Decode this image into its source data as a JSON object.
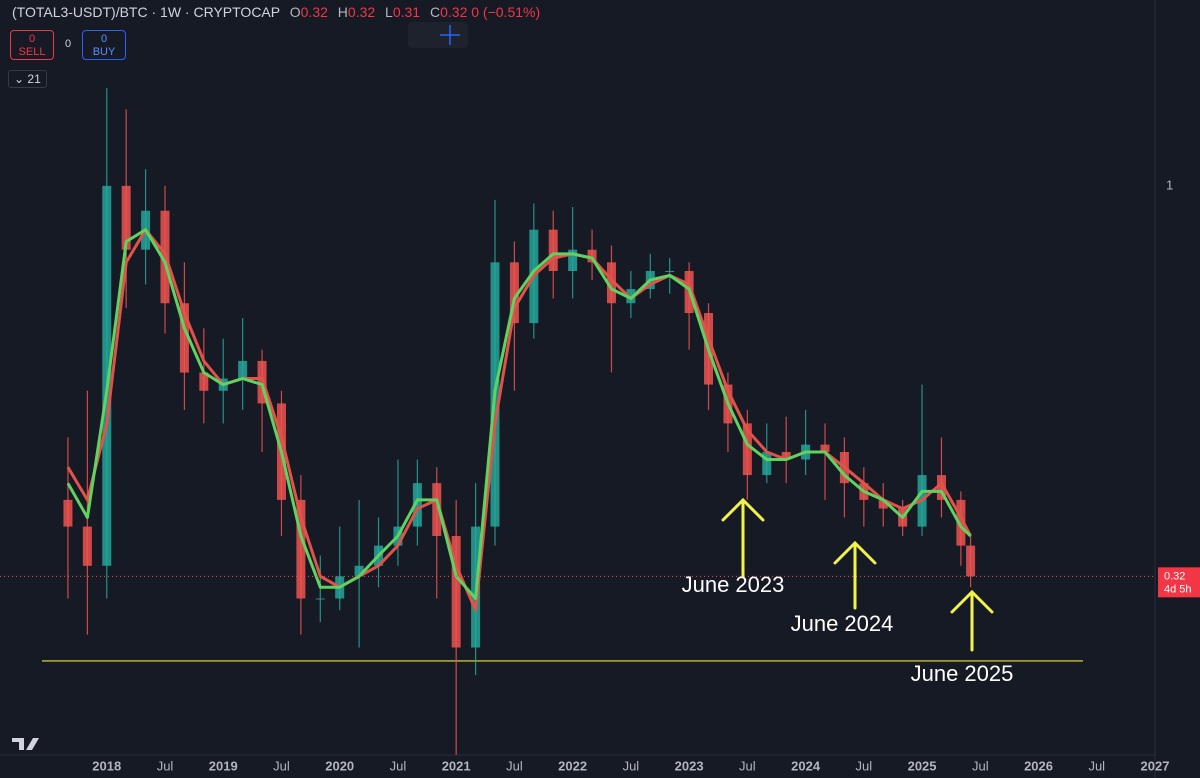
{
  "header": {
    "symbol": "(TOTAL3-USDT)/BTC · 1W · CRYPTOCAP",
    "o_label": "O",
    "o": "0.32",
    "h_label": "H",
    "h": "0.32",
    "l_label": "L",
    "l": "0.31",
    "c_label": "C",
    "c": "0.32",
    "change": "0 (−0.51%)",
    "sell_count": "0",
    "sell": "SELL",
    "spread": "0",
    "buy_count": "0",
    "buy": "BUY",
    "indicator": "21"
  },
  "chart_data": {
    "type": "candlestick",
    "log": true,
    "x": [
      "2017-09",
      "2017-11",
      "2018-01",
      "2018-03",
      "2018-05",
      "2018-07",
      "2018-09",
      "2018-11",
      "2019-01",
      "2019-03",
      "2019-05",
      "2019-07",
      "2019-09",
      "2019-11",
      "2020-01",
      "2020-03",
      "2020-05",
      "2020-07",
      "2020-09",
      "2020-11",
      "2021-01",
      "2021-03",
      "2021-05",
      "2021-07",
      "2021-09",
      "2021-11",
      "2022-01",
      "2022-03",
      "2022-05",
      "2022-07",
      "2022-09",
      "2022-11",
      "2023-01",
      "2023-03",
      "2023-05",
      "2023-07",
      "2023-09",
      "2023-11",
      "2024-01",
      "2024-03",
      "2024-05",
      "2024-07",
      "2024-09",
      "2024-11",
      "2025-01",
      "2025-03",
      "2025-05",
      "2025-06"
    ],
    "open": [
      0.4,
      0.37,
      0.33,
      1.0,
      0.83,
      0.93,
      0.71,
      0.58,
      0.55,
      0.57,
      0.6,
      0.53,
      0.4,
      0.3,
      0.3,
      0.32,
      0.33,
      0.35,
      0.37,
      0.42,
      0.36,
      0.26,
      0.37,
      0.8,
      0.67,
      0.88,
      0.78,
      0.83,
      0.8,
      0.71,
      0.74,
      0.78,
      0.78,
      0.69,
      0.56,
      0.5,
      0.43,
      0.46,
      0.45,
      0.47,
      0.46,
      0.42,
      0.4,
      0.39,
      0.37,
      0.43,
      0.4,
      0.35
    ],
    "high": [
      0.48,
      0.55,
      1.33,
      1.25,
      1.05,
      1.0,
      0.8,
      0.66,
      0.64,
      0.68,
      0.62,
      0.55,
      0.43,
      0.34,
      0.37,
      0.4,
      0.38,
      0.45,
      0.45,
      0.44,
      0.4,
      0.42,
      0.96,
      0.85,
      0.95,
      0.93,
      0.94,
      0.88,
      0.84,
      0.78,
      0.82,
      0.81,
      0.8,
      0.71,
      0.58,
      0.52,
      0.5,
      0.51,
      0.52,
      0.5,
      0.48,
      0.44,
      0.42,
      0.4,
      0.56,
      0.48,
      0.41,
      0.36
    ],
    "low": [
      0.3,
      0.27,
      0.3,
      0.7,
      0.75,
      0.65,
      0.52,
      0.5,
      0.5,
      0.52,
      0.46,
      0.36,
      0.27,
      0.28,
      0.29,
      0.26,
      0.31,
      0.33,
      0.35,
      0.3,
      0.19,
      0.24,
      0.35,
      0.55,
      0.64,
      0.72,
      0.72,
      0.76,
      0.58,
      0.68,
      0.72,
      0.73,
      0.62,
      0.52,
      0.46,
      0.4,
      0.42,
      0.42,
      0.43,
      0.4,
      0.38,
      0.37,
      0.37,
      0.36,
      0.36,
      0.38,
      0.33,
      0.31
    ],
    "close": [
      0.37,
      0.33,
      1.0,
      0.83,
      0.93,
      0.71,
      0.58,
      0.55,
      0.57,
      0.6,
      0.53,
      0.4,
      0.3,
      0.3,
      0.32,
      0.33,
      0.35,
      0.37,
      0.42,
      0.36,
      0.26,
      0.37,
      0.8,
      0.67,
      0.88,
      0.78,
      0.83,
      0.8,
      0.71,
      0.74,
      0.78,
      0.78,
      0.69,
      0.56,
      0.5,
      0.43,
      0.46,
      0.45,
      0.47,
      0.46,
      0.42,
      0.4,
      0.39,
      0.37,
      0.43,
      0.4,
      0.35,
      0.32
    ],
    "ma_fast": {
      "color": "#5fd35f",
      "values": [
        0.42,
        0.38,
        0.55,
        0.85,
        0.88,
        0.8,
        0.66,
        0.58,
        0.56,
        0.57,
        0.56,
        0.46,
        0.36,
        0.31,
        0.31,
        0.32,
        0.34,
        0.36,
        0.4,
        0.4,
        0.32,
        0.3,
        0.55,
        0.72,
        0.78,
        0.82,
        0.82,
        0.81,
        0.74,
        0.72,
        0.76,
        0.77,
        0.74,
        0.62,
        0.53,
        0.47,
        0.45,
        0.45,
        0.46,
        0.46,
        0.43,
        0.41,
        0.4,
        0.38,
        0.41,
        0.41,
        0.37,
        0.36
      ]
    },
    "ma_slow": {
      "color": "#e0524a",
      "values": [
        0.44,
        0.4,
        0.5,
        0.8,
        0.88,
        0.82,
        0.69,
        0.6,
        0.56,
        0.57,
        0.57,
        0.48,
        0.38,
        0.32,
        0.31,
        0.32,
        0.33,
        0.35,
        0.39,
        0.4,
        0.33,
        0.29,
        0.5,
        0.7,
        0.77,
        0.81,
        0.82,
        0.81,
        0.76,
        0.72,
        0.75,
        0.77,
        0.75,
        0.64,
        0.55,
        0.49,
        0.46,
        0.45,
        0.46,
        0.46,
        0.44,
        0.42,
        0.4,
        0.39,
        0.4,
        0.42,
        0.38,
        0.36
      ]
    },
    "up_color": "#26a69a",
    "down_color": "#ef5350",
    "xlim": [
      "2017-02",
      "2027-01"
    ],
    "xticks": [
      {
        "value": "2018-01",
        "label": "2018"
      },
      {
        "value": "2018-07",
        "label": "Jul"
      },
      {
        "value": "2019-01",
        "label": "2019"
      },
      {
        "value": "2019-07",
        "label": "Jul"
      },
      {
        "value": "2020-01",
        "label": "2020"
      },
      {
        "value": "2020-07",
        "label": "Jul"
      },
      {
        "value": "2021-01",
        "label": "2021"
      },
      {
        "value": "2021-07",
        "label": "Jul"
      },
      {
        "value": "2022-01",
        "label": "2022"
      },
      {
        "value": "2022-07",
        "label": "Jul"
      },
      {
        "value": "2023-01",
        "label": "2023"
      },
      {
        "value": "2023-07",
        "label": "Jul"
      },
      {
        "value": "2024-01",
        "label": "2024"
      },
      {
        "value": "2024-07",
        "label": "Jul"
      },
      {
        "value": "2025-01",
        "label": "2025"
      },
      {
        "value": "2025-07",
        "label": "Jul"
      },
      {
        "value": "2026-01",
        "label": "2026"
      },
      {
        "value": "2026-07",
        "label": "Jul"
      },
      {
        "value": "2027-01",
        "label": "2027"
      }
    ],
    "ylim": [
      0.19,
      1.72
    ],
    "yticks": [
      1
    ],
    "last_price": 0.32,
    "countdown": "4d 5h",
    "support_line": 0.25,
    "support_color": "#e8e83a",
    "annotations": [
      "June 2023",
      "June 2024",
      "June 2025"
    ]
  }
}
